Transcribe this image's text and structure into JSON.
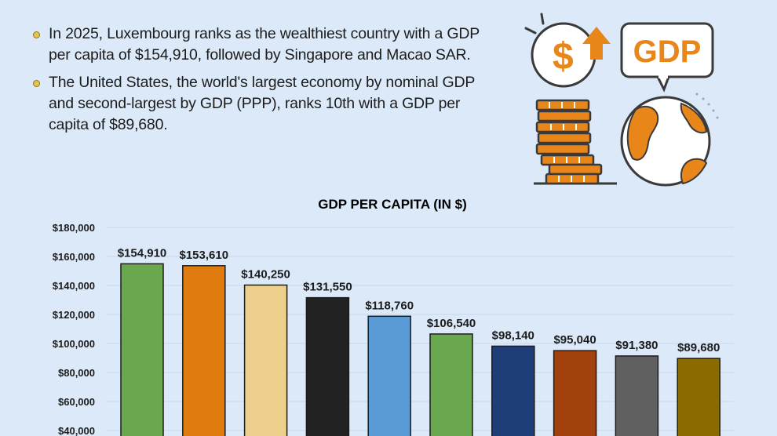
{
  "bullets": [
    "In 2025, Luxembourg ranks as the wealthiest country with a GDP per capita of $154,910, followed by Singapore and Macao SAR.",
    "The United States, the world's largest economy by nominal GDP and second-largest by GDP (PPP), ranks 10th with a GDP per capita of $89,680."
  ],
  "illustration": {
    "badge_text": "GDP",
    "dollar_symbol": "$",
    "icons": [
      "dollar-up-icon",
      "gdp-speech-bubble-icon",
      "coin-stacks-icon",
      "globe-icon"
    ],
    "colors": {
      "accent": "#e8861a",
      "outline": "#3a3a3a"
    }
  },
  "chart_data": {
    "type": "bar",
    "title": "GDP PER CAPITA (IN $)",
    "xlabel": "",
    "ylabel": "",
    "y_ticks": [
      "$40,000",
      "$60,000",
      "$80,000",
      "$100,000",
      "$120,000",
      "$140,000",
      "$160,000",
      "$180,000"
    ],
    "y_tick_values": [
      40000,
      60000,
      80000,
      100000,
      120000,
      140000,
      160000,
      180000
    ],
    "values": [
      154910,
      153610,
      140250,
      131550,
      118760,
      106540,
      98140,
      95040,
      91380,
      89680
    ],
    "value_labels": [
      "$154,910",
      "$153,610",
      "$140,250",
      "$131,550",
      "$118,760",
      "$106,540",
      "$98,140",
      "$95,040",
      "$91,380",
      "$89,680"
    ],
    "colors": [
      "#6aa84f",
      "#e07b0f",
      "#ecd08b",
      "#222222",
      "#5b9bd5",
      "#6aa84f",
      "#1f3e79",
      "#a0410e",
      "#606060",
      "#8b6b00"
    ],
    "grid": true,
    "legend": "none"
  }
}
